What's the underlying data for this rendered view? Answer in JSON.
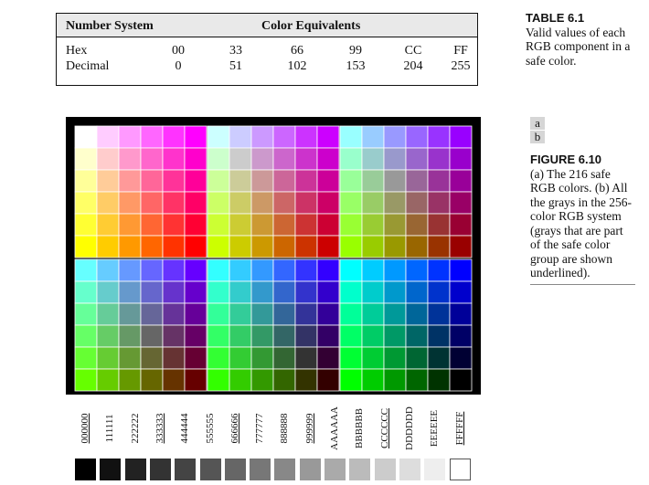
{
  "table": {
    "header_left": "Number System",
    "header_right": "Color Equivalents",
    "rows": [
      {
        "label": "Hex",
        "values": [
          "00",
          "33",
          "66",
          "99",
          "CC",
          "FF"
        ]
      },
      {
        "label": "Decimal",
        "values": [
          "0",
          "51",
          "102",
          "153",
          "204",
          "255"
        ]
      }
    ]
  },
  "table_caption": {
    "title": "TABLE 6.1",
    "text": "Valid values of each RGB component in a safe color."
  },
  "figure": {
    "panel_a": "a",
    "panel_b": "b",
    "title": "FIGURE 6.10",
    "text": "(a) The 216 safe RGB colors. (b) All the grays in the 256-color RGB system (grays that are part of the safe color group are shown underlined)."
  },
  "safe_levels_hex": [
    "00",
    "33",
    "66",
    "99",
    "CC",
    "FF"
  ],
  "grays": [
    {
      "hex": "000000",
      "safe": true
    },
    {
      "hex": "111111",
      "safe": false
    },
    {
      "hex": "222222",
      "safe": false
    },
    {
      "hex": "333333",
      "safe": true
    },
    {
      "hex": "444444",
      "safe": false
    },
    {
      "hex": "555555",
      "safe": false
    },
    {
      "hex": "666666",
      "safe": true
    },
    {
      "hex": "777777",
      "safe": false
    },
    {
      "hex": "888888",
      "safe": false
    },
    {
      "hex": "999999",
      "safe": true
    },
    {
      "hex": "AAAAAA",
      "safe": false
    },
    {
      "hex": "BBBBBB",
      "safe": false
    },
    {
      "hex": "CCCCCC",
      "safe": true
    },
    {
      "hex": "DDDDDD",
      "safe": false
    },
    {
      "hex": "EEEEEE",
      "safe": false
    },
    {
      "hex": "FFFFFF",
      "safe": true
    }
  ]
}
